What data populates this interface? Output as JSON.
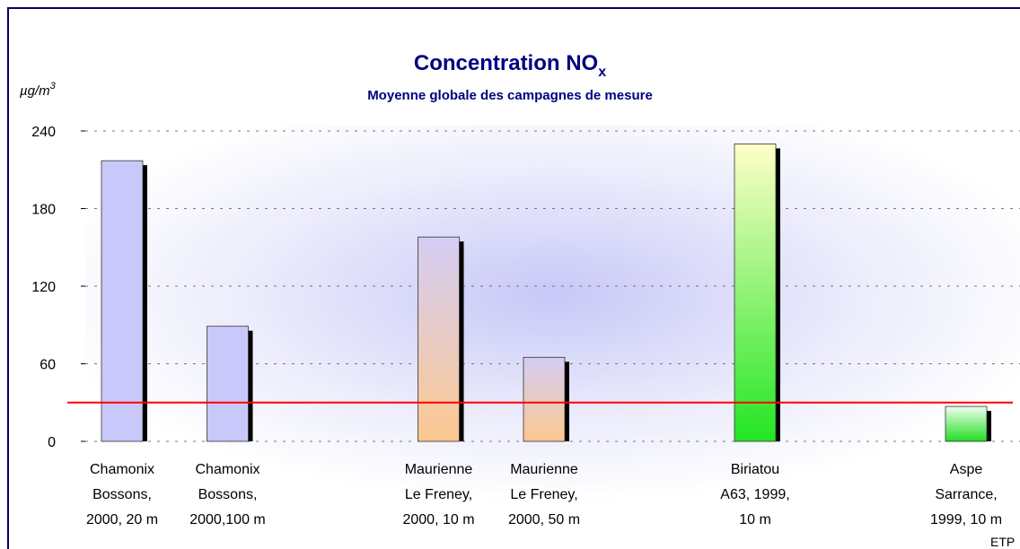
{
  "chart_data": {
    "type": "bar",
    "title": "Concentration NO",
    "title_sub": "x",
    "subtitle": "Moyenne globale des campagnes de mesure",
    "y_label": "µg/m",
    "y_label_sup": "3",
    "footer": "ETP",
    "categories": [
      [
        "Chamonix",
        "Bossons,",
        "2000, 20 m"
      ],
      [
        "Chamonix",
        "Bossons,",
        "2000,100 m"
      ],
      null,
      [
        "Maurienne",
        "Le Freney,",
        "2000, 10 m"
      ],
      [
        "Maurienne",
        "Le Freney,",
        "2000, 50 m"
      ],
      null,
      [
        "Biriatou",
        "A63, 1999,",
        "10 m"
      ],
      null,
      [
        "Aspe",
        "Sarrance,",
        "1999, 10 m"
      ]
    ],
    "values": [
      217,
      89,
      null,
      158,
      65,
      null,
      230,
      null,
      27
    ],
    "colors": [
      [
        "#c8c8fa",
        "#c8c8fa"
      ],
      [
        "#c8c8fa",
        "#c8c8fa"
      ],
      null,
      [
        "#d4cdf4",
        "#fcc890"
      ],
      [
        "#d4cdf4",
        "#fcc890"
      ],
      null,
      [
        "#ffffc8",
        "#22e622"
      ],
      null,
      [
        "#f0fff0",
        "#22dd22"
      ]
    ],
    "reference_line": 30,
    "reference_color": "#ff0000",
    "ylim": [
      0,
      240
    ],
    "yticks": [
      0,
      60,
      120,
      180,
      240
    ],
    "grid": true
  }
}
